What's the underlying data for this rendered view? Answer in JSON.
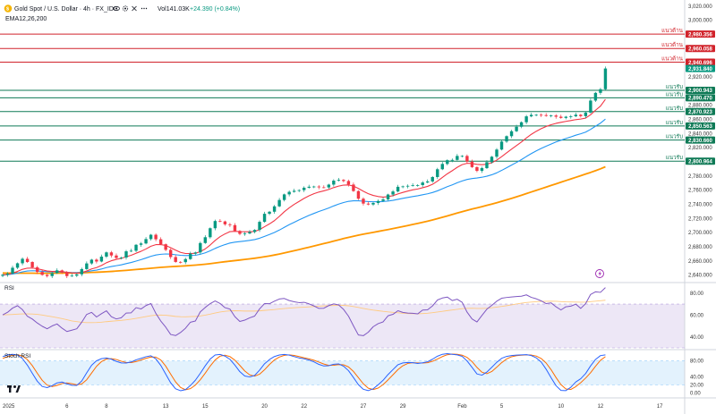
{
  "header": {
    "symbol": "Gold Spot / U.S. Dollar · 4h · FX_IDC",
    "volume": "Vol141.03K",
    "change": "+24.390 (+0.84%)",
    "ema_label": "EMA12,26,200"
  },
  "colors": {
    "up": "#089981",
    "down": "#f23645",
    "ema12": "#f23645",
    "ema26": "#2196f3",
    "ema200": "#ff9800",
    "support": "#0f7a56",
    "resistance": "#d1232b",
    "rsi_line": "#7e57c2",
    "rsi_ma": "#ffca80",
    "stoch_k": "#2962ff",
    "stoch_d": "#ff6d00",
    "last_price": "#089981"
  },
  "icons": [
    "gold-coin-icon",
    "eye-icon",
    "settings-icon",
    "close-icon",
    "more-icon",
    "lightning-icon",
    "tradingview-logo-icon"
  ],
  "chart_data": [
    {
      "type": "line",
      "pane": "price",
      "y_axis_ticks": [
        "3,020.000",
        "3,000.000",
        "2,980.000",
        "2,960.000",
        "2,940.000",
        "2,920.000",
        "2,900.000",
        "2,880.000",
        "2,860.000",
        "2,840.000",
        "2,820.000",
        "2,800.000",
        "2,780.000",
        "2,760.000",
        "2,740.000",
        "2,720.000",
        "2,700.000",
        "2,680.000",
        "2,660.000",
        "2,640.000"
      ],
      "ylim": [
        2632,
        3026
      ],
      "x_ticks": [
        {
          "label": "2025",
          "i": 0
        },
        {
          "label": "6",
          "i": 13
        },
        {
          "label": "8",
          "i": 21
        },
        {
          "label": "13",
          "i": 33
        },
        {
          "label": "15",
          "i": 41
        },
        {
          "label": "20",
          "i": 53
        },
        {
          "label": "22",
          "i": 61
        },
        {
          "label": "27",
          "i": 73
        },
        {
          "label": "29",
          "i": 81
        },
        {
          "label": "Feb",
          "i": 93
        },
        {
          "label": "5",
          "i": 101
        },
        {
          "label": "10",
          "i": 113
        },
        {
          "label": "12",
          "i": 121
        },
        {
          "label": "17",
          "i": 133
        }
      ],
      "levels": [
        {
          "value": 2980.356,
          "label": "2,980.356",
          "kind": "resistance",
          "name": "แนวต้าน"
        },
        {
          "value": 2960.058,
          "label": "2,960.058",
          "kind": "resistance",
          "name": "แนวต้าน"
        },
        {
          "value": 2940.696,
          "label": "2,940.696",
          "kind": "resistance",
          "name": "แนวต้าน"
        },
        {
          "value": 2900.943,
          "label": "2,900.943",
          "kind": "support",
          "name": "แนวรับ"
        },
        {
          "value": 2890.47,
          "label": "2,890.470",
          "kind": "support",
          "name": "แนวรับ"
        },
        {
          "value": 2870.923,
          "label": "2,870.923",
          "kind": "support",
          "name": "แนวรับ"
        },
        {
          "value": 2850.563,
          "label": "2,850.563",
          "kind": "support",
          "name": "แนวรับ"
        },
        {
          "value": 2830.66,
          "label": "2,830.660",
          "kind": "support",
          "name": "แนวรับ"
        },
        {
          "value": 2800.964,
          "label": "2,800.964",
          "kind": "support",
          "name": "แนวรับ"
        }
      ],
      "last_price": {
        "value": 2931.84,
        "label": "2,931.840"
      },
      "close": [
        2640.5,
        2642.3,
        2650.4,
        2656.7,
        2663.0,
        2658.5,
        2651.0,
        2644.5,
        2640.3,
        2638.6,
        2642.8,
        2646.7,
        2643.8,
        2638.6,
        2639.2,
        2641.1,
        2648.5,
        2656.5,
        2661.8,
        2659.2,
        2666.1,
        2672.1,
        2667.7,
        2664.2,
        2664.8,
        2673.6,
        2674.4,
        2682.8,
        2684.7,
        2690.9,
        2697.0,
        2690.6,
        2683.6,
        2675.7,
        2665.5,
        2658.6,
        2658.3,
        2662.6,
        2670.3,
        2672.0,
        2685.3,
        2693.5,
        2706.2,
        2716.4,
        2715.8,
        2711.7,
        2710.6,
        2702.4,
        2698.2,
        2698.8,
        2700.9,
        2703.8,
        2715.2,
        2726.6,
        2729.5,
        2737.1,
        2746.1,
        2754.0,
        2757.6,
        2759.1,
        2760.0,
        2763.4,
        2764.8,
        2765.1,
        2764.0,
        2763.8,
        2767.8,
        2773.4,
        2774.5,
        2772.9,
        2767.9,
        2758.7,
        2747.9,
        2741.0,
        2739.7,
        2741.9,
        2744.7,
        2746.9,
        2753.8,
        2758.1,
        2764.7,
        2765.3,
        2766.1,
        2766.9,
        2767.1,
        2770.8,
        2772.3,
        2778.5,
        2789.5,
        2797.0,
        2802.3,
        2802.7,
        2808.3,
        2808.3,
        2800.3,
        2792.5,
        2787.2,
        2791.1,
        2799.5,
        2807.2,
        2817.3,
        2828.6,
        2836.2,
        2843.2,
        2849.5,
        2855.9,
        2864.2,
        2866.3,
        2866.4,
        2866.0,
        2864.8,
        2865.4,
        2863.7,
        2862.0,
        2863.7,
        2864.3,
        2866.5,
        2864.5,
        2869.5,
        2886.5,
        2897.4,
        2902.5,
        2931.8
      ],
      "ema12": [
        2640.5,
        2640.9,
        2642.8,
        2645.2,
        2648.2,
        2649.8,
        2650.0,
        2649.0,
        2647.5,
        2645.8,
        2645.2,
        2645.3,
        2645.0,
        2643.9,
        2643.1,
        2642.7,
        2643.6,
        2645.8,
        2648.7,
        2650.6,
        2653.6,
        2657.5,
        2660.3,
        2662.2,
        2663.6,
        2665.9,
        2668.0,
        2670.9,
        2673.6,
        2676.9,
        2680.8,
        2683.0,
        2683.1,
        2681.9,
        2678.7,
        2675.2,
        2672.1,
        2670.5,
        2670.5,
        2670.8,
        2673.1,
        2677.0,
        2682.5,
        2688.9,
        2694.3,
        2698.2,
        2701.4,
        2701.9,
        2701.4,
        2701.2,
        2701.2,
        2701.6,
        2704.3,
        2708.3,
        2712.3,
        2716.9,
        2722.9,
        2729.5,
        2735.0,
        2739.9,
        2744.1,
        2748.3,
        2751.9,
        2755.0,
        2757.3,
        2759.0,
        2761.0,
        2763.6,
        2765.7,
        2767.1,
        2767.3,
        2765.7,
        2762.4,
        2758.4,
        2755.0,
        2752.5,
        2751.0,
        2750.2,
        2750.8,
        2752.2,
        2754.7,
        2756.8,
        2758.7,
        2760.4,
        2761.6,
        2763.4,
        2765.3,
        2768.2,
        2772.7,
        2777.9,
        2783.1,
        2787.5,
        2792.2,
        2796.0,
        2797.9,
        2797.6,
        2796.4,
        2795.9,
        2796.6,
        2798.7,
        2802.4,
        2807.3,
        2812.6,
        2817.9,
        2822.9,
        2828.0,
        2833.7,
        2838.8,
        2843.1,
        2846.8,
        2849.9,
        2852.4,
        2854.3,
        2855.8,
        2857.1,
        2858.3,
        2859.6,
        2860.4,
        2861.8,
        2866.5,
        2872.9,
        2878.6,
        2888.3
      ],
      "ema26": [
        2640.5,
        2640.6,
        2641.5,
        2642.8,
        2644.6,
        2645.8,
        2646.2,
        2646.0,
        2645.4,
        2644.7,
        2644.5,
        2644.6,
        2644.4,
        2644.0,
        2643.6,
        2643.4,
        2643.8,
        2644.8,
        2646.1,
        2647.1,
        2648.6,
        2650.6,
        2652.1,
        2653.3,
        2654.5,
        2656.2,
        2657.8,
        2659.8,
        2661.8,
        2664.1,
        2666.6,
        2668.4,
        2669.4,
        2669.9,
        2669.6,
        2668.8,
        2668.0,
        2667.6,
        2667.8,
        2668.0,
        2669.4,
        2671.5,
        2674.3,
        2677.7,
        2680.6,
        2683.1,
        2685.3,
        2686.5,
        2687.3,
        2688.1,
        2689.1,
        2690.2,
        2692.1,
        2694.7,
        2697.3,
        2700.2,
        2703.6,
        2707.4,
        2711.2,
        2714.6,
        2718.0,
        2721.2,
        2724.4,
        2727.1,
        2729.9,
        2732.2,
        2734.8,
        2737.7,
        2740.3,
        2742.5,
        2744.2,
        2744.9,
        2744.9,
        2744.4,
        2743.9,
        2743.6,
        2743.7,
        2743.9,
        2744.6,
        2745.6,
        2747.0,
        2748.4,
        2749.7,
        2750.9,
        2752.1,
        2753.5,
        2754.8,
        2756.6,
        2759.0,
        2761.9,
        2764.9,
        2767.4,
        2770.4,
        2773.0,
        2775.1,
        2776.4,
        2777.1,
        2778.2,
        2779.7,
        2781.7,
        2784.4,
        2787.9,
        2791.6,
        2795.4,
        2799.1,
        2803.1,
        2807.5,
        2811.6,
        2815.4,
        2818.9,
        2822.0,
        2825.1,
        2828.0,
        2830.5,
        2832.9,
        2835.2,
        2837.6,
        2839.6,
        2841.9,
        2845.8,
        2850.3,
        2854.6,
        2860.3
      ],
      "ema200": [
        2643.0,
        2642.9,
        2642.8,
        2642.8,
        2642.7,
        2642.7,
        2642.7,
        2642.6,
        2642.6,
        2642.6,
        2642.6,
        2642.7,
        2642.8,
        2642.9,
        2643.0,
        2643.1,
        2643.3,
        2643.5,
        2643.8,
        2644.1,
        2644.4,
        2644.8,
        2645.2,
        2645.7,
        2646.2,
        2646.7,
        2647.3,
        2647.9,
        2648.5,
        2649.1,
        2649.7,
        2650.3,
        2650.9,
        2651.4,
        2651.9,
        2652.3,
        2652.7,
        2653.1,
        2653.6,
        2654.1,
        2654.7,
        2655.4,
        2656.2,
        2657.1,
        2658.0,
        2658.9,
        2659.7,
        2660.5,
        2661.3,
        2662.1,
        2662.9,
        2663.8,
        2664.8,
        2665.9,
        2667.1,
        2668.4,
        2669.8,
        2671.3,
        2672.9,
        2674.5,
        2676.1,
        2677.7,
        2679.4,
        2681.1,
        2682.8,
        2684.5,
        2686.2,
        2688.0,
        2689.8,
        2691.6,
        2693.3,
        2694.9,
        2696.4,
        2697.8,
        2699.1,
        2700.4,
        2701.7,
        2703.0,
        2704.3,
        2705.7,
        2707.1,
        2708.5,
        2710.0,
        2711.5,
        2713.0,
        2714.6,
        2716.2,
        2717.9,
        2719.7,
        2721.6,
        2723.6,
        2725.6,
        2727.6,
        2729.6,
        2731.5,
        2733.3,
        2735.0,
        2736.7,
        2738.5,
        2740.3,
        2742.2,
        2744.2,
        2746.3,
        2748.4,
        2750.6,
        2752.8,
        2755.1,
        2757.4,
        2759.7,
        2762.0,
        2764.3,
        2766.6,
        2768.9,
        2771.2,
        2773.5,
        2775.8,
        2778.1,
        2780.4,
        2782.7,
        2785.0,
        2787.5,
        2790.1,
        2793.0
      ],
      "title": "",
      "xlabel": "",
      "ylabel": "",
      "grid": false
    },
    {
      "type": "line",
      "pane": "RSI",
      "label": "RSI",
      "y_ticks": [
        "80.00",
        "60.00",
        "40.00"
      ],
      "ylim": [
        30,
        88
      ],
      "band": [
        30,
        70
      ],
      "rsi": [
        60.1,
        62.5,
        66.3,
        68.5,
        64.9,
        58.8,
        56.3,
        52.7,
        49.7,
        47.4,
        50.0,
        51.8,
        48.0,
        44.9,
        46.1,
        47.4,
        53.4,
        60.5,
        62.4,
        58.2,
        61.2,
        63.8,
        58.4,
        56.4,
        57.5,
        61.8,
        62.0,
        66.7,
        65.5,
        68.6,
        70.5,
        61.5,
        54.5,
        48.9,
        42.2,
        41.2,
        44.0,
        47.9,
        53.4,
        54.5,
        62.9,
        66.9,
        70.4,
        72.8,
        70.5,
        66.7,
        65.4,
        58.5,
        54.1,
        55.3,
        57.4,
        59.0,
        65.6,
        70.4,
        70.3,
        72.6,
        74.6,
        75.1,
        73.2,
        72.1,
        71.3,
        71.6,
        70.2,
        68.3,
        66.0,
        66.2,
        68.6,
        70.1,
        69.2,
        65.1,
        58.9,
        50.1,
        41.7,
        41.1,
        44.3,
        49.3,
        52.1,
        53.7,
        59.3,
        60.6,
        63.9,
        62.4,
        61.8,
        61.6,
        61.0,
        64.5,
        64.7,
        68.3,
        73.7,
        75.5,
        76.4,
        73.2,
        74.4,
        71.6,
        62.6,
        56.4,
        53.6,
        59.6,
        65.3,
        68.8,
        72.6,
        75.3,
        76.0,
        76.5,
        76.9,
        77.2,
        78.4,
        76.1,
        74.8,
        72.9,
        70.4,
        71.1,
        67.5,
        64.6,
        67.5,
        68.1,
        69.9,
        66.0,
        70.4,
        78.8,
        81.2,
        80.7,
        85.0
      ],
      "rsi_ma": [
        60.1,
        60.3,
        60.5,
        60.8,
        61.0,
        61.0,
        60.9,
        60.6,
        60.0,
        59.2,
        58.4,
        57.6,
        56.7,
        55.7,
        54.6,
        53.9,
        53.3,
        53.0,
        53.0,
        53.1,
        53.4,
        53.9,
        54.3,
        54.7,
        55.1,
        55.6,
        56.2,
        56.9,
        57.7,
        58.5,
        59.4,
        59.9,
        60.0,
        59.8,
        59.3,
        58.7,
        58.4,
        58.3,
        58.5,
        58.7,
        59.2,
        59.9,
        60.8,
        61.8,
        62.7,
        63.3,
        63.8,
        63.9,
        63.8,
        63.6,
        63.6,
        63.6,
        63.8,
        64.2,
        64.6,
        65.0,
        65.5,
        65.9,
        66.3,
        66.6,
        66.9,
        67.1,
        67.4,
        67.7,
        68.0,
        68.3,
        68.5,
        68.7,
        68.9,
        68.8,
        68.4,
        67.7,
        66.9,
        66.0,
        65.2,
        64.5,
        63.9,
        63.3,
        62.8,
        62.4,
        62.0,
        61.6,
        61.3,
        61.2,
        61.1,
        61.3,
        61.6,
        62.1,
        62.7,
        63.3,
        64.0,
        64.6,
        65.2,
        65.8,
        66.1,
        66.2,
        66.0,
        66.0,
        66.2,
        66.6,
        67.2,
        67.8,
        68.5,
        69.3,
        70.1,
        70.8,
        71.4,
        71.8,
        72.1,
        72.4,
        72.5,
        72.6,
        72.5,
        72.2,
        72.0,
        71.9,
        71.8,
        71.7,
        71.8,
        72.2,
        72.6,
        73.0,
        73.5
      ],
      "title": "",
      "xlabel": "",
      "ylabel": ""
    },
    {
      "type": "line",
      "pane": "Stoch RSI",
      "label": "Stoch RSI",
      "y_ticks": [
        "80.00",
        "40.00",
        "20.00",
        "0.00"
      ],
      "ylim": [
        -8,
        104
      ],
      "band": [
        20,
        80
      ],
      "k": [
        91.0,
        95.3,
        96.7,
        95.0,
        86.1,
        69.5,
        49.2,
        29.4,
        16.2,
        13.3,
        18.2,
        25.1,
        27.3,
        22.8,
        19.2,
        18.8,
        29.8,
        50.3,
        69.3,
        80.7,
        85.8,
        87.5,
        84.4,
        79.1,
        75.1,
        74.9,
        77.6,
        82.9,
        86.6,
        90.7,
        93.1,
        85.4,
        68.9,
        47.2,
        25.3,
        10.4,
        5.5,
        8.2,
        18.5,
        31.8,
        49.1,
        68.0,
        84.8,
        95.0,
        96.5,
        92.3,
        84.1,
        69.6,
        53.2,
        42.3,
        40.0,
        43.8,
        57.1,
        73.0,
        83.6,
        91.2,
        95.0,
        96.4,
        94.7,
        91.0,
        87.6,
        85.5,
        82.4,
        77.8,
        71.5,
        67.5,
        68.3,
        71.9,
        72.7,
        67.0,
        55.7,
        38.6,
        20.6,
        9.2,
        5.8,
        10.4,
        20.4,
        31.7,
        46.1,
        58.5,
        70.6,
        75.1,
        76.3,
        75.7,
        73.7,
        75.4,
        78.1,
        84.4,
        92.0,
        96.8,
        98.4,
        96.6,
        95.4,
        91.7,
        80.0,
        64.0,
        47.6,
        44.5,
        52.3,
        64.2,
        76.7,
        86.7,
        91.5,
        93.7,
        94.8,
        95.3,
        95.8,
        93.6,
        87.8,
        77.4,
        59.4,
        38.2,
        18.2,
        6.2,
        5.7,
        14.3,
        27.4,
        35.5,
        48.7,
        67.7,
        83.9,
        93.5,
        95.2
      ],
      "d": [
        86.5,
        90.7,
        94.3,
        95.7,
        92.6,
        83.5,
        68.3,
        49.4,
        31.6,
        19.6,
        15.9,
        18.9,
        23.5,
        25.1,
        23.1,
        20.3,
        22.6,
        33.0,
        49.8,
        66.8,
        78.6,
        84.7,
        85.9,
        83.7,
        79.5,
        76.4,
        75.9,
        78.5,
        82.4,
        86.7,
        90.1,
        89.7,
        82.5,
        67.2,
        47.1,
        27.6,
        13.7,
        8.0,
        10.7,
        19.5,
        33.1,
        49.6,
        67.3,
        82.6,
        92.1,
        94.6,
        91.0,
        82.0,
        69.0,
        55.0,
        45.2,
        42.0,
        47.0,
        58.0,
        71.2,
        82.6,
        89.9,
        94.2,
        95.4,
        94.0,
        91.1,
        88.0,
        85.2,
        81.9,
        77.2,
        72.3,
        69.1,
        69.2,
        71.0,
        70.5,
        65.1,
        53.8,
        38.3,
        22.8,
        11.9,
        8.5,
        12.2,
        20.8,
        32.7,
        45.4,
        58.4,
        68.1,
        74.0,
        75.7,
        75.2,
        74.9,
        75.7,
        79.3,
        84.8,
        91.1,
        95.7,
        97.3,
        96.8,
        94.6,
        89.0,
        78.6,
        63.9,
        52.0,
        48.1,
        53.7,
        64.4,
        75.9,
        85.0,
        90.6,
        93.3,
        94.6,
        95.3,
        94.9,
        92.4,
        86.3,
        74.9,
        58.3,
        38.6,
        20.9,
        10.0,
        8.7,
        15.8,
        25.7,
        37.2,
        50.6,
        66.8,
        81.7,
        90.9
      ],
      "title": "",
      "xlabel": "",
      "ylabel": ""
    }
  ]
}
